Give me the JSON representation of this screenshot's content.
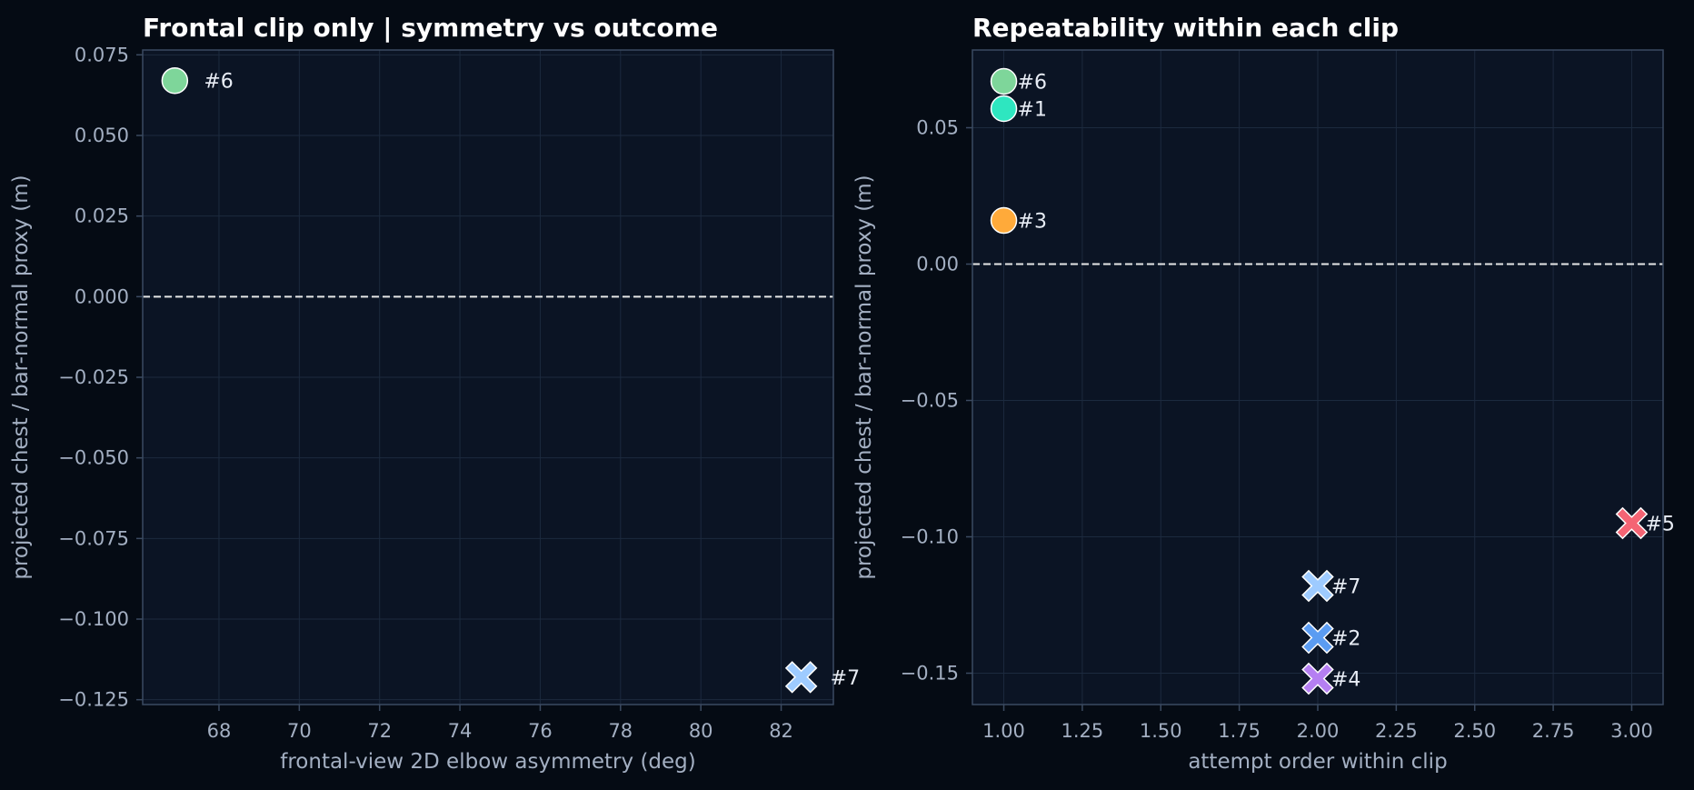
{
  "colors": {
    "background": "#050b14",
    "plot_bg": "#0b1424",
    "grid": "#1c2a3e",
    "frame": "#3b4a61",
    "zero_line": "#e6e6e6"
  },
  "chart_data": [
    {
      "type": "scatter",
      "title": "Frontal clip only | symmetry vs outcome",
      "xlabel": "frontal-view 2D elbow asymmetry (deg)",
      "ylabel": "projected chest / bar-normal proxy (m)",
      "xlim": [
        66.1,
        83.3
      ],
      "ylim": [
        -0.1265,
        0.0765
      ],
      "xticks": [
        68,
        70,
        72,
        74,
        76,
        78,
        80,
        82
      ],
      "xtick_labels": [
        "68",
        "70",
        "72",
        "74",
        "76",
        "78",
        "80",
        "82"
      ],
      "yticks": [
        0.075,
        0.05,
        0.025,
        0.0,
        -0.025,
        -0.05,
        -0.075,
        -0.1,
        -0.125
      ],
      "ytick_labels": [
        "0.075",
        "0.050",
        "0.025",
        "0.000",
        "−0.025",
        "−0.050",
        "−0.075",
        "−0.100",
        "−0.125"
      ],
      "grid": true,
      "hline": 0,
      "points": [
        {
          "label": "#6",
          "x": 66.9,
          "y": 0.067,
          "marker": "circle",
          "color": "#7ed69a"
        },
        {
          "label": "#7",
          "x": 82.5,
          "y": -0.118,
          "marker": "x",
          "color": "#9ecbff"
        }
      ]
    },
    {
      "type": "scatter",
      "title": "Repeatability within each clip",
      "xlabel": "attempt order within clip",
      "ylabel": "projected chest / bar-normal proxy (m)",
      "xlim": [
        0.9,
        3.1
      ],
      "ylim": [
        -0.1615,
        0.0785
      ],
      "xticks": [
        1.0,
        1.25,
        1.5,
        1.75,
        2.0,
        2.25,
        2.5,
        2.75,
        3.0
      ],
      "xtick_labels": [
        "1.00",
        "1.25",
        "1.50",
        "1.75",
        "2.00",
        "2.25",
        "2.50",
        "2.75",
        "3.00"
      ],
      "yticks": [
        0.05,
        0.0,
        -0.05,
        -0.1,
        -0.15
      ],
      "ytick_labels": [
        "0.05",
        "0.00",
        "−0.05",
        "−0.10",
        "−0.15"
      ],
      "grid": true,
      "hline": 0,
      "points": [
        {
          "label": "#6",
          "x": 1.0,
          "y": 0.067,
          "marker": "circle",
          "color": "#7ed69a"
        },
        {
          "label": "#1",
          "x": 1.0,
          "y": 0.057,
          "marker": "circle",
          "color": "#2ee6c0"
        },
        {
          "label": "#3",
          "x": 1.0,
          "y": 0.016,
          "marker": "circle",
          "color": "#ffaa3a"
        },
        {
          "label": "#7",
          "x": 2.0,
          "y": -0.118,
          "marker": "x",
          "color": "#9ecbff"
        },
        {
          "label": "#2",
          "x": 2.0,
          "y": -0.137,
          "marker": "x",
          "color": "#5b9cf2"
        },
        {
          "label": "#4",
          "x": 2.0,
          "y": -0.152,
          "marker": "x",
          "color": "#b57ff2"
        },
        {
          "label": "#5",
          "x": 3.0,
          "y": -0.095,
          "marker": "x",
          "color": "#f46474"
        }
      ]
    }
  ]
}
